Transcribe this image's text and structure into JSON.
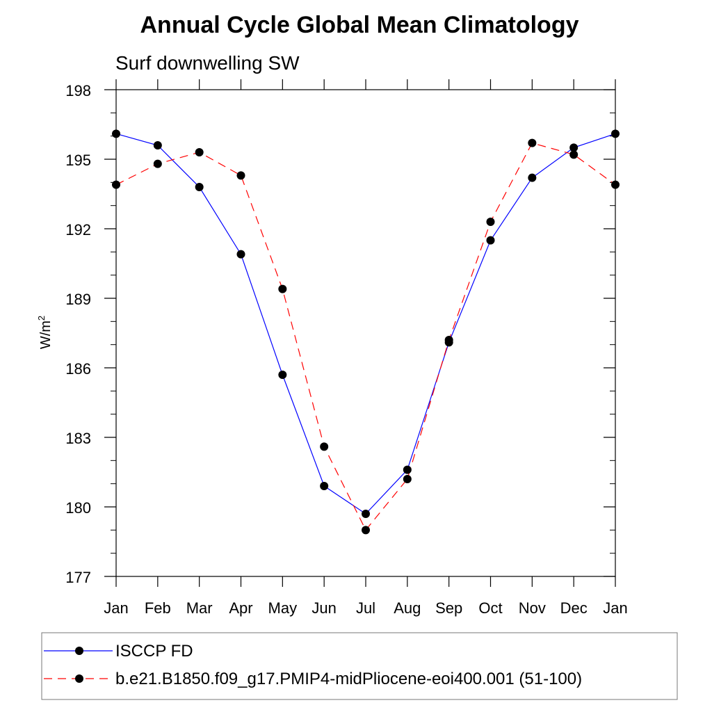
{
  "chart_data": {
    "type": "line",
    "title": "Annual Cycle Global Mean Climatology",
    "subtitle": "Surf downwelling SW",
    "ylabel_base": "W/m",
    "ylabel_sup": "2",
    "xlabel": "",
    "ylim": [
      177,
      198
    ],
    "yticks": [
      177,
      180,
      183,
      186,
      189,
      192,
      195,
      198
    ],
    "ytick_labels": [
      "177",
      "180",
      "183",
      "186",
      "189",
      "192",
      "195",
      "198"
    ],
    "categories": [
      "Jan",
      "Feb",
      "Mar",
      "Apr",
      "May",
      "Jun",
      "Jul",
      "Aug",
      "Sep",
      "Oct",
      "Nov",
      "Dec",
      "Jan"
    ],
    "series": [
      {
        "name": "ISCCP FD",
        "color": "#0000ff",
        "line_style": "solid",
        "values": [
          196.1,
          195.6,
          193.8,
          190.9,
          185.7,
          180.9,
          179.7,
          181.6,
          187.1,
          191.5,
          194.2,
          195.5,
          196.1
        ]
      },
      {
        "name": "b.e21.B1850.f09_g17.PMIP4-midPliocene-eoi400.001 (51-100)",
        "color": "#ff0000",
        "line_style": "dashed",
        "values": [
          193.9,
          194.8,
          195.3,
          194.3,
          189.4,
          182.6,
          179.0,
          181.2,
          187.2,
          192.3,
          195.7,
          195.2,
          193.9
        ]
      }
    ]
  }
}
